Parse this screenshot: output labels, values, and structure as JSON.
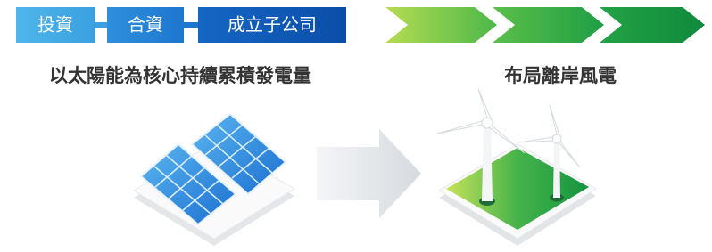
{
  "steps": [
    "投資",
    "合資",
    "成立子公司"
  ],
  "left_caption": "以太陽能為核心持續累積發電量",
  "right_caption": "布局離岸風電"
}
